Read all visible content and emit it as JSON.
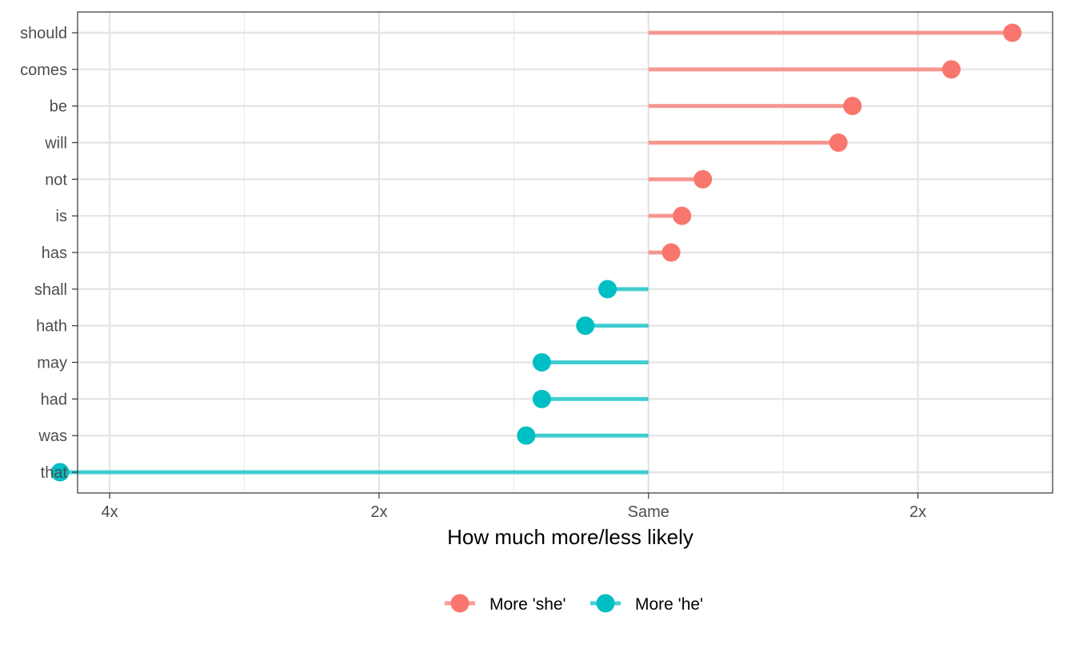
{
  "chart_data": {
    "type": "lollipop",
    "xlabel": "How much more/less likely",
    "x_scale": "log2",
    "x_ticks": [
      {
        "value": 0.25,
        "label": "4x"
      },
      {
        "value": 0.5,
        "label": "2x"
      },
      {
        "value": 1,
        "label": "Same"
      },
      {
        "value": 2,
        "label": "2x"
      }
    ],
    "xlim": [
      0.2302,
      2.8284
    ],
    "baseline": 1,
    "categories": [
      "should",
      "comes",
      "be",
      "will",
      "not",
      "is",
      "has",
      "shall",
      "hath",
      "may",
      "had",
      "was",
      "that"
    ],
    "values": [
      2.55,
      2.18,
      1.69,
      1.63,
      1.15,
      1.09,
      1.06,
      0.9,
      0.85,
      0.76,
      0.76,
      0.73,
      0.22
    ],
    "groups": [
      "she",
      "she",
      "she",
      "she",
      "she",
      "she",
      "she",
      "he",
      "he",
      "he",
      "he",
      "he",
      "he"
    ],
    "series": [
      {
        "key": "she",
        "name": "More 'she'",
        "color": "#F8766D"
      },
      {
        "key": "he",
        "name": "More 'he'",
        "color": "#00BFC4"
      }
    ],
    "grid": true,
    "legend_position": "bottom"
  }
}
